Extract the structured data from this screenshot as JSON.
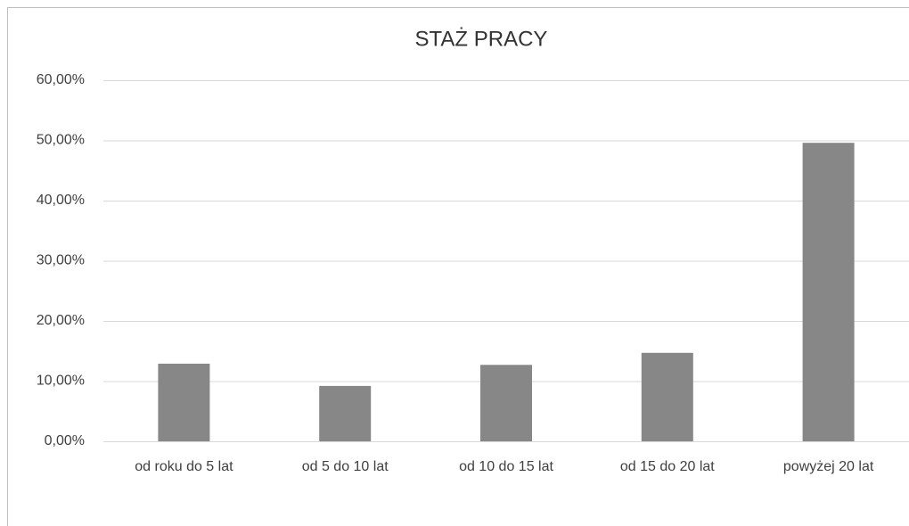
{
  "chart_data": {
    "type": "bar",
    "title": "STAŻ PRACY",
    "categories": [
      "od roku do 5 lat",
      "od 5 do 10 lat",
      "od 10 do 15 lat",
      "od 15 do 20 lat",
      "powyżej 20 lat"
    ],
    "values": [
      12.9,
      9.2,
      12.7,
      14.7,
      49.6
    ],
    "color": "#878787",
    "ylim": [
      0,
      60
    ],
    "yticks": [
      {
        "value": 0,
        "label": "0,00%"
      },
      {
        "value": 10,
        "label": "10,00%"
      },
      {
        "value": 20,
        "label": "20,00%"
      },
      {
        "value": 30,
        "label": "30,00%"
      },
      {
        "value": 40,
        "label": "40,00%"
      },
      {
        "value": 50,
        "label": "50,00%"
      },
      {
        "value": 60,
        "label": "60,00%"
      }
    ],
    "grid": true
  }
}
